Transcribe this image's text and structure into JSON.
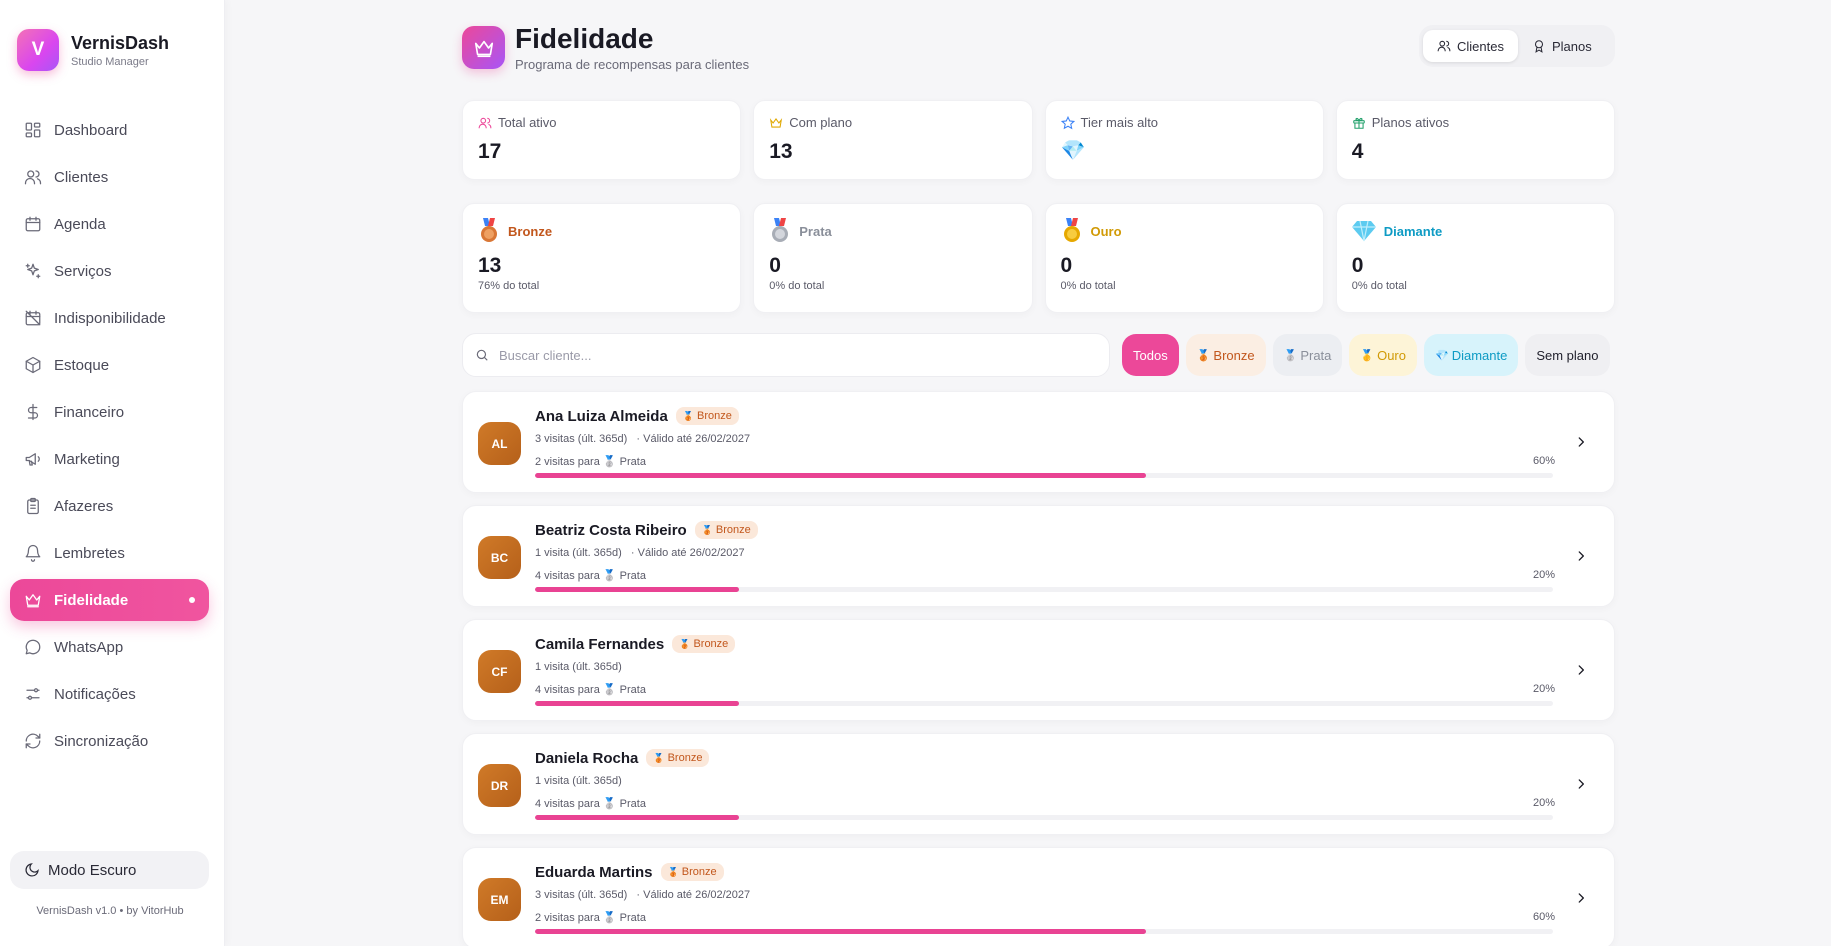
{
  "brand": {
    "logo_letter": "V",
    "name": "VernisDash",
    "subtitle": "Studio Manager"
  },
  "sidebar": {
    "items": [
      {
        "label": "Dashboard",
        "icon": "grid-icon"
      },
      {
        "label": "Clientes",
        "icon": "users-icon"
      },
      {
        "label": "Agenda",
        "icon": "calendar-icon"
      },
      {
        "label": "Serviços",
        "icon": "sparkles-icon"
      },
      {
        "label": "Indisponibilidade",
        "icon": "calendar-off-icon"
      },
      {
        "label": "Estoque",
        "icon": "package-icon"
      },
      {
        "label": "Financeiro",
        "icon": "dollar-icon"
      },
      {
        "label": "Marketing",
        "icon": "megaphone-icon"
      },
      {
        "label": "Afazeres",
        "icon": "clipboard-icon"
      },
      {
        "label": "Lembretes",
        "icon": "bell-icon"
      },
      {
        "label": "Fidelidade",
        "icon": "crown-icon",
        "active": true
      },
      {
        "label": "WhatsApp",
        "icon": "message-circle-icon"
      },
      {
        "label": "Notificações",
        "icon": "sliders-icon"
      },
      {
        "label": "Sincronização",
        "icon": "refresh-icon"
      }
    ],
    "dark_mode_label": "Modo Escuro",
    "footer": "VernisDash v1.0 • by VitorHub"
  },
  "header": {
    "title": "Fidelidade",
    "subtitle": "Programa de recompensas para clientes",
    "tabs": {
      "clientes": "Clientes",
      "planos": "Planos"
    }
  },
  "stats": {
    "total_label": "Total ativo",
    "total_value": "17",
    "plano_label": "Com plano",
    "plano_value": "13",
    "tier_label": "Tier mais alto",
    "tier_value": "💎",
    "planos_label": "Planos ativos",
    "planos_value": "4"
  },
  "tiers": {
    "bronze": {
      "name": "Bronze",
      "count": "13",
      "pct": "76% do total"
    },
    "prata": {
      "name": "Prata",
      "count": "0",
      "pct": "0% do total"
    },
    "ouro": {
      "name": "Ouro",
      "count": "0",
      "pct": "0% do total"
    },
    "diamante": {
      "name": "Diamante",
      "count": "0",
      "pct": "0% do total"
    }
  },
  "search": {
    "placeholder": "Buscar cliente..."
  },
  "filters": {
    "todos": "Todos",
    "bronze": "Bronze",
    "prata": "Prata",
    "ouro": "Ouro",
    "diamante": "Diamante",
    "sem_plano": "Sem plano"
  },
  "clients": [
    {
      "initials": "AL",
      "name": "Ana Luiza Almeida",
      "badge": "Bronze",
      "visits": "3 visitas (últ. 365d)",
      "valid": "· Válido até 26/02/2027",
      "next_prefix": "2 visitas para",
      "next_tier": "Prata",
      "pct_label": "60%",
      "progress": 0.6
    },
    {
      "initials": "BC",
      "name": "Beatriz Costa Ribeiro",
      "badge": "Bronze",
      "visits": "1 visita (últ. 365d)",
      "valid": "· Válido até 26/02/2027",
      "next_prefix": "4 visitas para",
      "next_tier": "Prata",
      "pct_label": "20%",
      "progress": 0.2
    },
    {
      "initials": "CF",
      "name": "Camila Fernandes",
      "badge": "Bronze",
      "visits": "1 visita (últ. 365d)",
      "valid": "",
      "next_prefix": "4 visitas para",
      "next_tier": "Prata",
      "pct_label": "20%",
      "progress": 0.2
    },
    {
      "initials": "DR",
      "name": "Daniela Rocha",
      "badge": "Bronze",
      "visits": "1 visita (últ. 365d)",
      "valid": "",
      "next_prefix": "4 visitas para",
      "next_tier": "Prata",
      "pct_label": "20%",
      "progress": 0.2
    },
    {
      "initials": "EM",
      "name": "Eduarda Martins",
      "badge": "Bronze",
      "visits": "3 visitas (últ. 365d)",
      "valid": "· Válido até 26/02/2027",
      "next_prefix": "2 visitas para",
      "next_tier": "Prata",
      "pct_label": "60%",
      "progress": 0.6
    }
  ],
  "colors": {
    "accent": "#ec4899",
    "bronze": "#c2571d",
    "prata": "#8a8f9a",
    "ouro": "#d19a06",
    "diamante": "#0e9bc4"
  }
}
